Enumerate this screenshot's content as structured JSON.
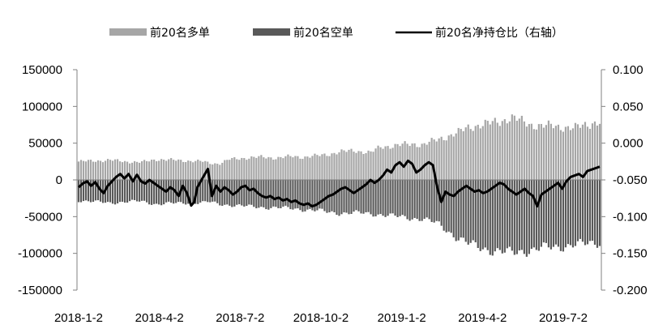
{
  "chart_data": {
    "type": "bar",
    "title": "",
    "legend_position": "top-center",
    "grid": false,
    "colors": {
      "long": "#a6a6a6",
      "short": "#595959",
      "ratio": "#000000"
    },
    "left_axis": {
      "ylim": [
        -150000,
        150000
      ],
      "ticks": [
        "150000",
        "100000",
        "50000",
        "0",
        "-50000",
        "-100000",
        "-150000"
      ]
    },
    "right_axis": {
      "ylim": [
        -0.2,
        0.1
      ],
      "ticks": [
        "0.100",
        "0.050",
        "0.000",
        "-0.050",
        "-0.100",
        "-0.150",
        "-0.200"
      ]
    },
    "x_ticks": [
      "2018-1-2",
      "2018-4-2",
      "2018-7-2",
      "2018-10-2",
      "2019-1-2",
      "2019-4-2",
      "2019-7-2"
    ],
    "x_tick_positions": [
      0,
      0.155,
      0.31,
      0.465,
      0.62,
      0.775,
      0.93
    ],
    "series": [
      {
        "name": "前20名多单",
        "axis": "left",
        "points": [
          [
            0.0,
            25000
          ],
          [
            0.03,
            26000
          ],
          [
            0.06,
            27000
          ],
          [
            0.09,
            25000
          ],
          [
            0.12,
            24000
          ],
          [
            0.15,
            28000
          ],
          [
            0.18,
            27000
          ],
          [
            0.21,
            26000
          ],
          [
            0.24,
            25000
          ],
          [
            0.25,
            23000
          ],
          [
            0.27,
            22000
          ],
          [
            0.29,
            28000
          ],
          [
            0.32,
            30000
          ],
          [
            0.35,
            31000
          ],
          [
            0.38,
            30000
          ],
          [
            0.41,
            32000
          ],
          [
            0.43,
            31000
          ],
          [
            0.46,
            33000
          ],
          [
            0.48,
            35000
          ],
          [
            0.5,
            38000
          ],
          [
            0.53,
            40000
          ],
          [
            0.56,
            37000
          ],
          [
            0.58,
            45000
          ],
          [
            0.61,
            47000
          ],
          [
            0.64,
            49000
          ],
          [
            0.66,
            48000
          ],
          [
            0.69,
            55000
          ],
          [
            0.71,
            60000
          ],
          [
            0.73,
            65000
          ],
          [
            0.75,
            72000
          ],
          [
            0.77,
            75000
          ],
          [
            0.79,
            77000
          ],
          [
            0.81,
            80000
          ],
          [
            0.83,
            85000
          ],
          [
            0.85,
            80000
          ],
          [
            0.87,
            75000
          ],
          [
            0.89,
            73000
          ],
          [
            0.91,
            74000
          ],
          [
            0.93,
            72000
          ],
          [
            0.95,
            70000
          ],
          [
            0.97,
            75000
          ],
          [
            0.99,
            78000
          ],
          [
            1.0,
            78000
          ]
        ]
      },
      {
        "name": "前20名空单",
        "axis": "left",
        "points": [
          [
            0.0,
            -28000
          ],
          [
            0.03,
            -30000
          ],
          [
            0.06,
            -31000
          ],
          [
            0.09,
            -30000
          ],
          [
            0.12,
            -29000
          ],
          [
            0.15,
            -33000
          ],
          [
            0.18,
            -32000
          ],
          [
            0.21,
            -31000
          ],
          [
            0.24,
            -31000
          ],
          [
            0.25,
            -30000
          ],
          [
            0.27,
            -33000
          ],
          [
            0.29,
            -34000
          ],
          [
            0.32,
            -36000
          ],
          [
            0.35,
            -37000
          ],
          [
            0.38,
            -38000
          ],
          [
            0.41,
            -39000
          ],
          [
            0.43,
            -40000
          ],
          [
            0.46,
            -42000
          ],
          [
            0.48,
            -44000
          ],
          [
            0.5,
            -45000
          ],
          [
            0.53,
            -45000
          ],
          [
            0.56,
            -46000
          ],
          [
            0.58,
            -47000
          ],
          [
            0.61,
            -50000
          ],
          [
            0.64,
            -52000
          ],
          [
            0.66,
            -53000
          ],
          [
            0.69,
            -60000
          ],
          [
            0.71,
            -70000
          ],
          [
            0.73,
            -80000
          ],
          [
            0.75,
            -88000
          ],
          [
            0.77,
            -92000
          ],
          [
            0.79,
            -95000
          ],
          [
            0.81,
            -98000
          ],
          [
            0.83,
            -100000
          ],
          [
            0.85,
            -97000
          ],
          [
            0.87,
            -95000
          ],
          [
            0.89,
            -93000
          ],
          [
            0.91,
            -92000
          ],
          [
            0.93,
            -90000
          ],
          [
            0.95,
            -88000
          ],
          [
            0.97,
            -88000
          ],
          [
            0.99,
            -86000
          ],
          [
            1.0,
            -85000
          ]
        ]
      },
      {
        "name": "前20名净持仓比（右轴）",
        "axis": "right",
        "type": "line",
        "points": [
          [
            0.0,
            -0.06
          ],
          [
            0.008,
            -0.055
          ],
          [
            0.016,
            -0.052
          ],
          [
            0.024,
            -0.058
          ],
          [
            0.032,
            -0.053
          ],
          [
            0.04,
            -0.062
          ],
          [
            0.048,
            -0.068
          ],
          [
            0.056,
            -0.058
          ],
          [
            0.064,
            -0.052
          ],
          [
            0.072,
            -0.046
          ],
          [
            0.08,
            -0.042
          ],
          [
            0.088,
            -0.048
          ],
          [
            0.096,
            -0.042
          ],
          [
            0.104,
            -0.052
          ],
          [
            0.112,
            -0.043
          ],
          [
            0.12,
            -0.052
          ],
          [
            0.128,
            -0.055
          ],
          [
            0.136,
            -0.05
          ],
          [
            0.144,
            -0.054
          ],
          [
            0.152,
            -0.058
          ],
          [
            0.16,
            -0.062
          ],
          [
            0.168,
            -0.066
          ],
          [
            0.176,
            -0.06
          ],
          [
            0.184,
            -0.064
          ],
          [
            0.192,
            -0.072
          ],
          [
            0.2,
            -0.058
          ],
          [
            0.208,
            -0.068
          ],
          [
            0.216,
            -0.085
          ],
          [
            0.222,
            -0.08
          ],
          [
            0.228,
            -0.06
          ],
          [
            0.236,
            -0.05
          ],
          [
            0.244,
            -0.04
          ],
          [
            0.248,
            -0.035
          ],
          [
            0.256,
            -0.072
          ],
          [
            0.264,
            -0.058
          ],
          [
            0.272,
            -0.066
          ],
          [
            0.28,
            -0.06
          ],
          [
            0.288,
            -0.064
          ],
          [
            0.296,
            -0.07
          ],
          [
            0.304,
            -0.066
          ],
          [
            0.312,
            -0.06
          ],
          [
            0.32,
            -0.058
          ],
          [
            0.328,
            -0.064
          ],
          [
            0.336,
            -0.062
          ],
          [
            0.344,
            -0.068
          ],
          [
            0.352,
            -0.072
          ],
          [
            0.36,
            -0.074
          ],
          [
            0.368,
            -0.072
          ],
          [
            0.376,
            -0.076
          ],
          [
            0.384,
            -0.074
          ],
          [
            0.392,
            -0.078
          ],
          [
            0.4,
            -0.076
          ],
          [
            0.408,
            -0.08
          ],
          [
            0.416,
            -0.078
          ],
          [
            0.424,
            -0.082
          ],
          [
            0.432,
            -0.084
          ],
          [
            0.44,
            -0.082
          ],
          [
            0.448,
            -0.086
          ],
          [
            0.456,
            -0.084
          ],
          [
            0.464,
            -0.08
          ],
          [
            0.472,
            -0.076
          ],
          [
            0.48,
            -0.072
          ],
          [
            0.488,
            -0.07
          ],
          [
            0.496,
            -0.066
          ],
          [
            0.504,
            -0.062
          ],
          [
            0.512,
            -0.06
          ],
          [
            0.52,
            -0.064
          ],
          [
            0.528,
            -0.068
          ],
          [
            0.536,
            -0.064
          ],
          [
            0.544,
            -0.06
          ],
          [
            0.552,
            -0.056
          ],
          [
            0.56,
            -0.05
          ],
          [
            0.568,
            -0.054
          ],
          [
            0.576,
            -0.05
          ],
          [
            0.584,
            -0.044
          ],
          [
            0.592,
            -0.036
          ],
          [
            0.6,
            -0.04
          ],
          [
            0.608,
            -0.03
          ],
          [
            0.616,
            -0.026
          ],
          [
            0.624,
            -0.032
          ],
          [
            0.632,
            -0.024
          ],
          [
            0.64,
            -0.028
          ],
          [
            0.648,
            -0.04
          ],
          [
            0.656,
            -0.036
          ],
          [
            0.664,
            -0.03
          ],
          [
            0.672,
            -0.026
          ],
          [
            0.68,
            -0.03
          ],
          [
            0.688,
            -0.06
          ],
          [
            0.696,
            -0.08
          ],
          [
            0.704,
            -0.066
          ],
          [
            0.712,
            -0.07
          ],
          [
            0.72,
            -0.072
          ],
          [
            0.728,
            -0.066
          ],
          [
            0.736,
            -0.062
          ],
          [
            0.744,
            -0.058
          ],
          [
            0.752,
            -0.062
          ],
          [
            0.76,
            -0.066
          ],
          [
            0.768,
            -0.064
          ],
          [
            0.776,
            -0.068
          ],
          [
            0.784,
            -0.066
          ],
          [
            0.792,
            -0.062
          ],
          [
            0.8,
            -0.058
          ],
          [
            0.808,
            -0.054
          ],
          [
            0.816,
            -0.056
          ],
          [
            0.824,
            -0.062
          ],
          [
            0.832,
            -0.066
          ],
          [
            0.84,
            -0.07
          ],
          [
            0.848,
            -0.066
          ],
          [
            0.856,
            -0.062
          ],
          [
            0.864,
            -0.068
          ],
          [
            0.872,
            -0.072
          ],
          [
            0.88,
            -0.086
          ],
          [
            0.888,
            -0.07
          ],
          [
            0.896,
            -0.066
          ],
          [
            0.904,
            -0.062
          ],
          [
            0.912,
            -0.058
          ],
          [
            0.92,
            -0.054
          ],
          [
            0.928,
            -0.062
          ],
          [
            0.936,
            -0.052
          ],
          [
            0.944,
            -0.046
          ],
          [
            0.952,
            -0.044
          ],
          [
            0.96,
            -0.042
          ],
          [
            0.968,
            -0.046
          ],
          [
            0.976,
            -0.038
          ],
          [
            0.984,
            -0.036
          ],
          [
            0.992,
            -0.034
          ],
          [
            1.0,
            -0.032
          ]
        ]
      }
    ]
  }
}
